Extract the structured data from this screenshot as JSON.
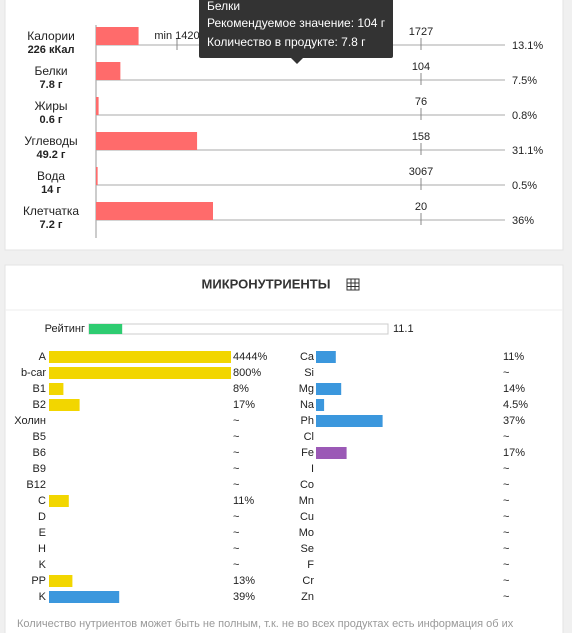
{
  "macro": {
    "rows": [
      {
        "name": "Калории",
        "amount": "226 кКал",
        "recommended": 1727,
        "min": "min 1420",
        "percent": 13.1,
        "percent_label": "13.1%"
      },
      {
        "name": "Белки",
        "amount": "7.8 г",
        "recommended": 104,
        "percent": 7.5,
        "percent_label": "7.5%"
      },
      {
        "name": "Жиры",
        "amount": "0.6 г",
        "recommended": 76,
        "percent": 0.8,
        "percent_label": "0.8%"
      },
      {
        "name": "Углеводы",
        "amount": "49.2 г",
        "recommended": 158,
        "percent": 31.1,
        "percent_label": "31.1%"
      },
      {
        "name": "Вода",
        "amount": "14 г",
        "recommended": 3067,
        "percent": 0.5,
        "percent_label": "0.5%"
      },
      {
        "name": "Клетчатка",
        "amount": "7.2 г",
        "recommended": 20,
        "percent": 36,
        "percent_label": "36%"
      }
    ],
    "color": "#ff6b6b"
  },
  "tooltip": {
    "title": "Белки",
    "line1": "Рекомендуемое значение: 104 г",
    "line2": "Количество в продукте: 7.8 г"
  },
  "micro": {
    "title": "МИКРОНУТРИЕНТЫ",
    "rating": {
      "label": "Рейтинг",
      "value": 11.1,
      "color": "#2ecc71"
    },
    "left": [
      {
        "name": "A",
        "value": 4444,
        "label": "4444%",
        "color": "#f2d600"
      },
      {
        "name": "b-car",
        "value": 800,
        "label": "800%",
        "color": "#f2d600"
      },
      {
        "name": "B1",
        "value": 8,
        "label": "8%",
        "color": "#f2d600"
      },
      {
        "name": "B2",
        "value": 17,
        "label": "17%",
        "color": "#f2d600"
      },
      {
        "name": "Холин",
        "value": null,
        "label": "~"
      },
      {
        "name": "B5",
        "value": null,
        "label": "~"
      },
      {
        "name": "B6",
        "value": null,
        "label": "~"
      },
      {
        "name": "B9",
        "value": null,
        "label": "~"
      },
      {
        "name": "B12",
        "value": null,
        "label": "~"
      },
      {
        "name": "C",
        "value": 11,
        "label": "11%",
        "color": "#f2d600"
      },
      {
        "name": "D",
        "value": null,
        "label": "~"
      },
      {
        "name": "E",
        "value": null,
        "label": "~"
      },
      {
        "name": "H",
        "value": null,
        "label": "~"
      },
      {
        "name": "K",
        "value": null,
        "label": "~"
      },
      {
        "name": "PP",
        "value": 13,
        "label": "13%",
        "color": "#f2d600"
      },
      {
        "name": "K",
        "value": 39,
        "label": "39%",
        "color": "#3b97dd"
      }
    ],
    "right": [
      {
        "name": "Ca",
        "value": 11,
        "label": "11%",
        "color": "#3b97dd"
      },
      {
        "name": "Si",
        "value": null,
        "label": "~"
      },
      {
        "name": "Mg",
        "value": 14,
        "label": "14%",
        "color": "#3b97dd"
      },
      {
        "name": "Na",
        "value": 4.5,
        "label": "4.5%",
        "color": "#3b97dd"
      },
      {
        "name": "Ph",
        "value": 37,
        "label": "37%",
        "color": "#3b97dd"
      },
      {
        "name": "Cl",
        "value": null,
        "label": "~"
      },
      {
        "name": "Fe",
        "value": 17,
        "label": "17%",
        "color": "#9b59b6"
      },
      {
        "name": "I",
        "value": null,
        "label": "~"
      },
      {
        "name": "Co",
        "value": null,
        "label": "~"
      },
      {
        "name": "Mn",
        "value": null,
        "label": "~"
      },
      {
        "name": "Cu",
        "value": null,
        "label": "~"
      },
      {
        "name": "Mo",
        "value": null,
        "label": "~"
      },
      {
        "name": "Se",
        "value": null,
        "label": "~"
      },
      {
        "name": "F",
        "value": null,
        "label": "~"
      },
      {
        "name": "Cr",
        "value": null,
        "label": "~"
      },
      {
        "name": "Zn",
        "value": null,
        "label": "~"
      }
    ],
    "footnote": "Количество нутриентов может быть не полным, т.к. не во всех продуктах есть информация об их"
  }
}
